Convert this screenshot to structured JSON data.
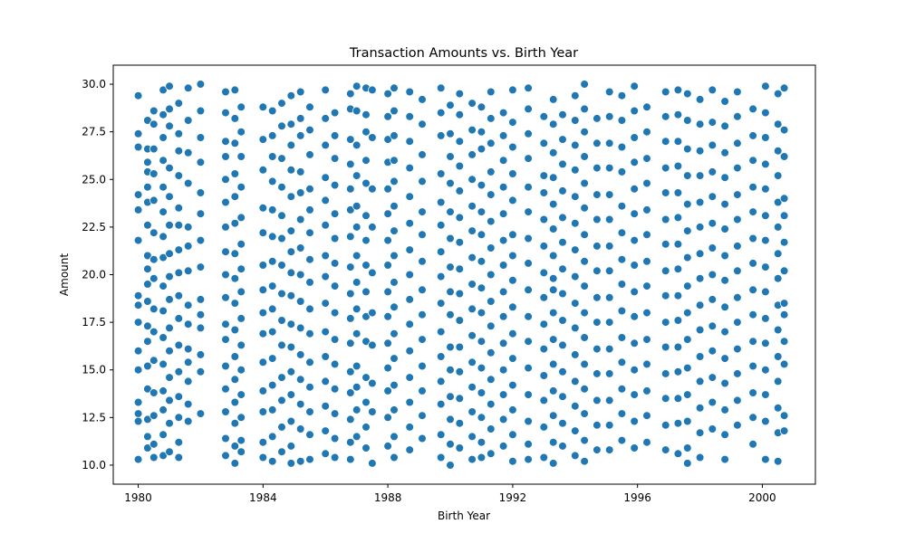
{
  "chart_data": {
    "type": "scatter",
    "title": "Transaction Amounts vs. Birth Year",
    "xlabel": "Birth Year",
    "ylabel": "Amount",
    "xlim": [
      1979.2,
      2001.7
    ],
    "ylim": [
      9.0,
      31.0
    ],
    "x_ticks": [
      1980,
      1984,
      1988,
      1992,
      1996,
      2000
    ],
    "y_ticks": [
      "10.0",
      "12.5",
      "15.0",
      "17.5",
      "20.0",
      "22.5",
      "25.0",
      "27.5",
      "30.0"
    ],
    "grid": false,
    "legend": "none",
    "marker_color": "#1f77b4",
    "marker_edge_color": "#ffffff",
    "columns": [
      {
        "x": 1980.0,
        "y": [
          29.4,
          27.4,
          26.7,
          24.2,
          23.4,
          21.8,
          18.9,
          18.4,
          17.5,
          16.0,
          15.0,
          13.3,
          12.7,
          12.3,
          10.3
        ]
      },
      {
        "x": 1980.3,
        "y": [
          28.1,
          26.6,
          25.9,
          25.4,
          24.6,
          23.8,
          22.6,
          21.0,
          20.3,
          19.5,
          18.6,
          17.3,
          16.5,
          15.2,
          14.0,
          12.4,
          11.5,
          10.9
        ]
      },
      {
        "x": 1980.5,
        "y": [
          28.6,
          27.9,
          26.6,
          25.3,
          23.9,
          22.2,
          20.8,
          19.8,
          18.2,
          17.0,
          15.5,
          13.8,
          12.6,
          11.1,
          10.4
        ]
      },
      {
        "x": 1980.8,
        "y": [
          29.7,
          28.4,
          27.2,
          26.0,
          24.6,
          23.3,
          22.0,
          20.9,
          19.4,
          18.1,
          16.7,
          15.3,
          13.9,
          12.9,
          11.6,
          10.5
        ]
      },
      {
        "x": 1981.0,
        "y": [
          29.9,
          28.7,
          27.8,
          25.6,
          24.1,
          22.6,
          21.1,
          19.9,
          18.7,
          17.2,
          16.0,
          14.6,
          13.4,
          12.2,
          10.7
        ]
      },
      {
        "x": 1981.3,
        "y": [
          29.0,
          27.4,
          26.5,
          25.2,
          23.5,
          22.6,
          21.3,
          20.1,
          18.9,
          17.7,
          16.3,
          14.9,
          13.6,
          12.5,
          11.2,
          10.4
        ]
      },
      {
        "x": 1981.6,
        "y": [
          29.8,
          28.1,
          26.4,
          24.8,
          22.5,
          21.5,
          20.2,
          18.4,
          17.4,
          16.1,
          15.4,
          14.4,
          13.2,
          12.3
        ]
      },
      {
        "x": 1982.0,
        "y": [
          30.0,
          28.6,
          27.2,
          25.9,
          24.3,
          23.2,
          21.8,
          20.4,
          18.7,
          17.9,
          17.2,
          15.8,
          14.9,
          12.7
        ]
      },
      {
        "x": 1982.8,
        "y": [
          29.6,
          28.5,
          27.0,
          26.2,
          25.0,
          23.8,
          22.5,
          21.2,
          20.0,
          18.8,
          17.4,
          16.6,
          15.2,
          14.0,
          12.8,
          11.4,
          10.5
        ]
      },
      {
        "x": 1983.1,
        "y": [
          29.7,
          28.2,
          26.9,
          25.3,
          24.1,
          22.7,
          21.1,
          19.8,
          18.5,
          17.1,
          15.7,
          14.5,
          13.3,
          12.2,
          11.0,
          10.1
        ]
      },
      {
        "x": 1983.3,
        "y": [
          28.8,
          27.5,
          26.2,
          24.6,
          23.0,
          21.6,
          20.3,
          19.1,
          17.7,
          16.3,
          15.0,
          13.7,
          12.5,
          11.3,
          10.7
        ]
      },
      {
        "x": 1984.0,
        "y": [
          28.8,
          27.1,
          25.5,
          23.5,
          22.2,
          20.5,
          19.2,
          18.0,
          16.9,
          15.4,
          13.9,
          12.8,
          11.2,
          10.4
        ]
      },
      {
        "x": 1984.3,
        "y": [
          28.6,
          27.3,
          26.2,
          24.9,
          23.4,
          22.0,
          20.7,
          19.4,
          18.2,
          17.0,
          15.6,
          14.2,
          12.9,
          11.5,
          10.2
        ]
      },
      {
        "x": 1984.6,
        "y": [
          29.0,
          27.8,
          26.1,
          24.6,
          23.1,
          21.9,
          20.5,
          19.0,
          17.6,
          16.3,
          14.6,
          13.4,
          12.0,
          10.7
        ]
      },
      {
        "x": 1984.9,
        "y": [
          29.4,
          27.9,
          26.8,
          25.5,
          24.1,
          22.3,
          21.2,
          20.1,
          18.9,
          17.4,
          16.2,
          14.9,
          13.7,
          12.3,
          11.0,
          10.1
        ]
      },
      {
        "x": 1985.2,
        "y": [
          29.6,
          28.2,
          27.3,
          25.4,
          24.3,
          22.9,
          21.4,
          20.0,
          18.6,
          17.2,
          15.8,
          14.5,
          13.2,
          11.9,
          10.2
        ]
      },
      {
        "x": 1985.5,
        "y": [
          28.8,
          27.6,
          26.3,
          24.5,
          23.4,
          22.2,
          20.8,
          19.6,
          18.2,
          16.9,
          15.4,
          14.1,
          12.8,
          11.6,
          10.3
        ]
      },
      {
        "x": 1986.0,
        "y": [
          29.7,
          28.2,
          26.8,
          25.1,
          23.9,
          22.6,
          21.0,
          19.9,
          18.5,
          17.0,
          15.7,
          14.4,
          13.1,
          11.8,
          10.6
        ]
      },
      {
        "x": 1986.3,
        "y": [
          28.5,
          27.3,
          26.1,
          24.7,
          23.2,
          21.9,
          20.6,
          19.4,
          18.0,
          16.6,
          15.3,
          14.0,
          12.7,
          11.4,
          10.4
        ]
      },
      {
        "x": 1986.8,
        "y": [
          29.5,
          28.7,
          27.1,
          25.8,
          24.5,
          23.4,
          22.0,
          20.4,
          19.0,
          17.7,
          16.4,
          14.9,
          13.8,
          12.4,
          11.2,
          10.3
        ]
      },
      {
        "x": 1987.0,
        "y": [
          29.9,
          28.6,
          26.8,
          25.2,
          23.6,
          22.5,
          21.0,
          19.6,
          18.2,
          16.9,
          15.2,
          14.1,
          12.9,
          11.5
        ]
      },
      {
        "x": 1987.3,
        "y": [
          29.8,
          28.4,
          27.5,
          26.0,
          24.8,
          23.1,
          21.8,
          20.5,
          19.1,
          17.8,
          16.5,
          14.6,
          13.3,
          12.0,
          10.9
        ]
      },
      {
        "x": 1987.5,
        "y": [
          29.7,
          27.2,
          24.5,
          22.5,
          20.1,
          18.0,
          16.3,
          14.3,
          12.8,
          10.1
        ]
      },
      {
        "x": 1988.0,
        "y": [
          29.5,
          28.3,
          27.1,
          25.9,
          24.5,
          23.2,
          21.8,
          20.5,
          19.1,
          17.8,
          16.4,
          15.1,
          13.9,
          12.5,
          11.0
        ]
      },
      {
        "x": 1988.2,
        "y": [
          29.8,
          28.6,
          27.3,
          26.0,
          24.9,
          23.6,
          22.3,
          21.0,
          19.6,
          18.3,
          16.9,
          15.6,
          14.2,
          12.9,
          11.5,
          10.4
        ]
      },
      {
        "x": 1988.7,
        "y": [
          29.6,
          28.3,
          27.0,
          25.6,
          24.1,
          22.7,
          21.3,
          20.0,
          18.7,
          17.4,
          16.0,
          14.6,
          13.3,
          12.0,
          10.8
        ]
      },
      {
        "x": 1989.1,
        "y": [
          29.2,
          27.9,
          26.3,
          24.9,
          23.3,
          22.1,
          20.7,
          19.2,
          17.9,
          16.6,
          15.2,
          13.9,
          12.6,
          11.4
        ]
      },
      {
        "x": 1989.7,
        "y": [
          29.8,
          28.5,
          27.3,
          25.3,
          23.8,
          22.6,
          21.2,
          19.9,
          18.5,
          17.0,
          15.7,
          14.4,
          13.2,
          11.6,
          10.4
        ]
      },
      {
        "x": 1990.0,
        "y": [
          28.9,
          27.4,
          26.2,
          24.8,
          23.3,
          21.9,
          20.4,
          19.1,
          17.9,
          16.2,
          15.0,
          13.6,
          12.4,
          11.1,
          10.0
        ]
      },
      {
        "x": 1990.3,
        "y": [
          29.5,
          28.4,
          27.0,
          25.7,
          24.4,
          23.0,
          21.7,
          20.3,
          19.0,
          17.6,
          16.2,
          14.9,
          13.5,
          12.2,
          10.9
        ]
      },
      {
        "x": 1990.7,
        "y": [
          29.0,
          27.6,
          26.3,
          25.0,
          23.6,
          22.3,
          20.9,
          19.5,
          18.2,
          16.8,
          15.4,
          14.1,
          12.8,
          11.5,
          10.3
        ]
      },
      {
        "x": 1991.0,
        "y": [
          28.8,
          27.5,
          26.6,
          24.7,
          23.3,
          22.1,
          20.7,
          19.3,
          18.0,
          16.5,
          15.1,
          13.8,
          12.5,
          11.2,
          10.4
        ]
      },
      {
        "x": 1991.3,
        "y": [
          29.6,
          28.2,
          26.9,
          25.4,
          24.2,
          22.8,
          21.4,
          20.0,
          18.6,
          17.3,
          15.9,
          14.5,
          13.2,
          11.9,
          10.6
        ]
      },
      {
        "x": 1991.7,
        "y": [
          28.5,
          27.3,
          26.0,
          24.6,
          23.2,
          21.8,
          20.5,
          19.1,
          17.8,
          16.4,
          15.0,
          13.7,
          12.4,
          11.0
        ]
      },
      {
        "x": 1992.0,
        "y": [
          29.7,
          28.0,
          26.7,
          25.3,
          23.9,
          22.1,
          21.0,
          19.7,
          18.3,
          16.9,
          15.6,
          14.2,
          12.9,
          11.6,
          10.2
        ]
      },
      {
        "x": 1992.5,
        "y": [
          29.8,
          28.7,
          27.4,
          26.1,
          24.6,
          23.3,
          21.9,
          20.6,
          19.2,
          17.8,
          16.5,
          15.1,
          13.7,
          12.3,
          11.1,
          10.3
        ]
      },
      {
        "x": 1993.0,
        "y": [
          28.3,
          26.9,
          25.2,
          24.3,
          22.9,
          21.5,
          20.1,
          18.8,
          17.4,
          16.1,
          14.7,
          13.4,
          12.0,
          10.4
        ]
      },
      {
        "x": 1993.3,
        "y": [
          29.2,
          27.9,
          26.4,
          25.1,
          23.7,
          22.4,
          21.0,
          19.8,
          19.2,
          18.0,
          16.6,
          15.3,
          13.9,
          12.6,
          11.2,
          10.1
        ]
      },
      {
        "x": 1993.6,
        "y": [
          28.4,
          27.1,
          25.8,
          24.4,
          23.0,
          21.7,
          20.3,
          19.0,
          17.6,
          16.3,
          14.9,
          13.6,
          12.2,
          11.0
        ]
      },
      {
        "x": 1994.0,
        "y": [
          29.4,
          28.1,
          26.8,
          25.5,
          24.1,
          22.7,
          21.3,
          19.9,
          18.5,
          17.2,
          15.8,
          14.4,
          13.1,
          11.8,
          10.5
        ]
      },
      {
        "x": 1994.3,
        "y": [
          30.0,
          28.7,
          27.5,
          26.2,
          24.8,
          23.5,
          22.1,
          20.7,
          19.4,
          18.0,
          16.7,
          15.3,
          14.0,
          12.7,
          11.3,
          10.2
        ]
      },
      {
        "x": 1994.7,
        "y": [
          28.2,
          26.9,
          25.6,
          24.2,
          22.9,
          21.5,
          20.2,
          18.8,
          17.5,
          16.1,
          14.8,
          13.4,
          12.1,
          10.8
        ]
      },
      {
        "x": 1995.1,
        "y": [
          29.6,
          28.3,
          26.9,
          25.6,
          24.2,
          22.9,
          21.5,
          20.2,
          18.8,
          17.5,
          16.1,
          14.8,
          13.4,
          12.1,
          10.8
        ]
      },
      {
        "x": 1995.5,
        "y": [
          29.4,
          28.1,
          26.7,
          25.4,
          23.6,
          22.2,
          20.8,
          19.5,
          18.1,
          16.7,
          15.4,
          14.0,
          12.7,
          11.3
        ]
      },
      {
        "x": 1995.9,
        "y": [
          29.9,
          28.6,
          27.2,
          25.9,
          24.5,
          23.2,
          21.8,
          20.5,
          19.1,
          17.8,
          16.4,
          15.0,
          13.7,
          12.3,
          10.9
        ]
      },
      {
        "x": 1996.3,
        "y": [
          28.8,
          27.5,
          26.1,
          24.8,
          23.4,
          22.1,
          20.7,
          19.4,
          18.0,
          16.6,
          15.3,
          13.9,
          12.6,
          11.2
        ]
      },
      {
        "x": 1996.9,
        "y": [
          29.6,
          28.3,
          27.0,
          25.6,
          24.3,
          22.9,
          21.6,
          20.2,
          18.9,
          17.5,
          16.2,
          14.8,
          13.5,
          12.1,
          10.8
        ]
      },
      {
        "x": 1997.3,
        "y": [
          29.7,
          28.4,
          27.0,
          25.7,
          24.3,
          23.0,
          21.6,
          20.3,
          18.9,
          17.6,
          16.2,
          14.9,
          13.5,
          12.2,
          10.6
        ]
      },
      {
        "x": 1997.6,
        "y": [
          29.5,
          28.1,
          26.6,
          25.2,
          23.7,
          22.3,
          20.9,
          19.4,
          18.0,
          16.6,
          15.1,
          13.7,
          12.3,
          10.9,
          10.1
        ]
      },
      {
        "x": 1998.0,
        "y": [
          29.2,
          27.9,
          26.5,
          25.2,
          23.8,
          22.5,
          21.1,
          19.8,
          18.4,
          17.1,
          15.7,
          14.4,
          13.0,
          11.7,
          10.4
        ]
      },
      {
        "x": 1998.4,
        "y": [
          29.7,
          28.0,
          26.8,
          25.4,
          24.1,
          22.7,
          21.4,
          20.0,
          18.7,
          17.3,
          16.0,
          14.6,
          13.3,
          11.9
        ]
      },
      {
        "x": 1998.8,
        "y": [
          29.1,
          27.8,
          26.4,
          25.1,
          23.7,
          22.4,
          21.0,
          19.7,
          18.3,
          17.0,
          15.6,
          14.3,
          12.9,
          11.6,
          10.3
        ]
      },
      {
        "x": 1999.2,
        "y": [
          29.6,
          28.3,
          26.9,
          25.6,
          24.2,
          22.9,
          21.5,
          20.2,
          18.8,
          17.5,
          16.1,
          14.8,
          13.4,
          12.1
        ]
      },
      {
        "x": 1999.7,
        "y": [
          28.7,
          27.3,
          26.0,
          24.6,
          23.3,
          21.9,
          20.6,
          19.2,
          17.9,
          16.5,
          15.2,
          13.8,
          12.5,
          11.1
        ]
      },
      {
        "x": 2000.1,
        "y": [
          29.9,
          28.5,
          27.2,
          25.8,
          24.5,
          23.1,
          21.8,
          20.4,
          19.1,
          17.7,
          16.4,
          15.0,
          13.7,
          12.3,
          10.3
        ]
      },
      {
        "x": 2000.5,
        "y": [
          29.5,
          27.9,
          26.5,
          25.2,
          23.8,
          22.5,
          21.1,
          19.8,
          18.4,
          17.1,
          15.7,
          14.4,
          13.0,
          11.7,
          10.2
        ]
      },
      {
        "x": 2000.7,
        "y": [
          29.8,
          27.6,
          26.2,
          24.0,
          23.1,
          21.7,
          20.2,
          18.5,
          17.9,
          16.5,
          15.3,
          12.6,
          11.8
        ]
      }
    ]
  }
}
